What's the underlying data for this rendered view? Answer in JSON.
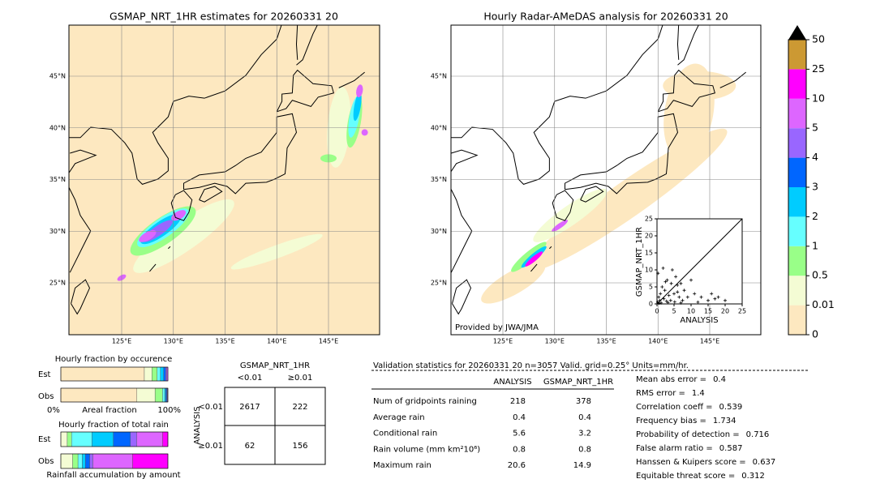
{
  "left_map": {
    "title": "GSMAP_NRT_1HR estimates for 20260331 20",
    "lat_labels": [
      "45°N",
      "40°N",
      "35°N",
      "30°N",
      "25°N"
    ],
    "lon_labels": [
      "125°E",
      "130°E",
      "135°E",
      "140°E",
      "145°E"
    ]
  },
  "right_map": {
    "title": "Hourly Radar-AMeDAS analysis for 20260331 20",
    "lat_labels": [
      "45°N",
      "40°N",
      "35°N",
      "30°N",
      "25°N"
    ],
    "lon_labels": [
      "125°E",
      "130°E",
      "135°E",
      "140°E",
      "145°E"
    ],
    "credit": "Provided by JWA/JMA"
  },
  "colorbar": {
    "bounds": [
      0,
      0.01,
      0.5,
      1,
      2,
      3,
      4,
      5,
      10,
      25,
      50
    ],
    "colors": [
      "#fde8c0",
      "#f4fcd4",
      "#99ff88",
      "#66ffff",
      "#00ccff",
      "#0066ff",
      "#9966ff",
      "#dd66ff",
      "#ff00ff",
      "#cc9933"
    ]
  },
  "scatter": {
    "type": "scatter",
    "xlabel": "ANALYSIS",
    "ylabel": "GSMAP_NRT_1HR",
    "xlim": [
      0,
      25
    ],
    "ylim": [
      0,
      25
    ],
    "xticks": [
      0,
      5,
      10,
      15,
      20,
      25
    ],
    "yticks": [
      0,
      5,
      10,
      15,
      20,
      25
    ],
    "x": [
      0.2,
      0.5,
      0.8,
      1,
      1.2,
      1.5,
      2,
      2.3,
      2.8,
      3,
      3.5,
      4,
      4.2,
      5,
      5.5,
      6,
      6.5,
      7,
      7.5,
      8,
      9,
      10,
      11,
      13,
      15,
      16,
      17,
      18,
      20,
      0.3,
      1.8,
      2.5,
      4.5,
      6,
      0.6,
      3.2,
      5.2,
      7,
      12
    ],
    "y": [
      0.5,
      2,
      1,
      3,
      0.3,
      5,
      1.5,
      4,
      0.8,
      7,
      2.5,
      1,
      6,
      3,
      8,
      5.5,
      2,
      6,
      1,
      4,
      2,
      7,
      3,
      2,
      1,
      3,
      1.5,
      2,
      1,
      9,
      10.5,
      6.5,
      10,
      3.5,
      0.2,
      0.4,
      0.6,
      0.3,
      0.5
    ]
  },
  "occurrence": {
    "title": "Hourly fraction by occurence",
    "rows": [
      "Est",
      "Obs"
    ],
    "est": [
      0.78,
      0.07,
      0.05,
      0.03,
      0.03,
      0.02,
      0.01,
      0.01,
      0,
      0
    ],
    "obs": [
      0.71,
      0.17,
      0.07,
      0.02,
      0.01,
      0.01,
      0.005,
      0.005,
      0,
      0
    ],
    "axis_left": "0%",
    "axis_mid": "Areal fraction",
    "axis_right": "100%"
  },
  "amount": {
    "title": "Hourly fraction of total rain",
    "rows": [
      "Est",
      "Obs"
    ],
    "est": [
      0,
      0.06,
      0.04,
      0.19,
      0.2,
      0.16,
      0.06,
      0.24,
      0.05,
      0
    ],
    "obs": [
      0,
      0.11,
      0.05,
      0.04,
      0.03,
      0.04,
      0.03,
      0.37,
      0.33,
      0
    ],
    "footer": "Rainfall accumulation by amount"
  },
  "contingency": {
    "title": "GSMAP_NRT_1HR",
    "cols": [
      "<0.01",
      "≥0.01"
    ],
    "axis": "ANALYSIS",
    "rows": [
      "<0.01",
      "≥0.01"
    ],
    "cells": [
      [
        2617,
        222
      ],
      [
        62,
        156
      ]
    ]
  },
  "validation": {
    "header": "Validation statistics for 20260331 20  n=3057 Valid. grid=0.25° Units=mm/hr.",
    "columns": [
      "ANALYSIS",
      "GSMAP_NRT_1HR"
    ],
    "rows": [
      {
        "label": "Num of gridpoints raining",
        "analysis": 218,
        "gsmap": 378
      },
      {
        "label": "Average rain",
        "analysis": 0.4,
        "gsmap": 0.4
      },
      {
        "label": "Conditional rain",
        "analysis": 5.6,
        "gsmap": 3.2
      },
      {
        "label": "Rain volume (mm km²10⁶)",
        "analysis": 0.8,
        "gsmap": 0.8
      },
      {
        "label": "Maximum rain",
        "analysis": 20.6,
        "gsmap": 14.9
      }
    ],
    "scores": [
      {
        "label": "Mean abs error =",
        "value": 0.4
      },
      {
        "label": "RMS error =",
        "value": 1.4
      },
      {
        "label": "Correlation coeff =",
        "value": 0.539
      },
      {
        "label": "Frequency bias =",
        "value": 1.734
      },
      {
        "label": "Probability of detection =",
        "value": 0.716
      },
      {
        "label": "False alarm ratio =",
        "value": 0.587
      },
      {
        "label": "Hanssen & Kuipers score =",
        "value": 0.637
      },
      {
        "label": "Equitable threat score =",
        "value": 0.312
      }
    ]
  }
}
